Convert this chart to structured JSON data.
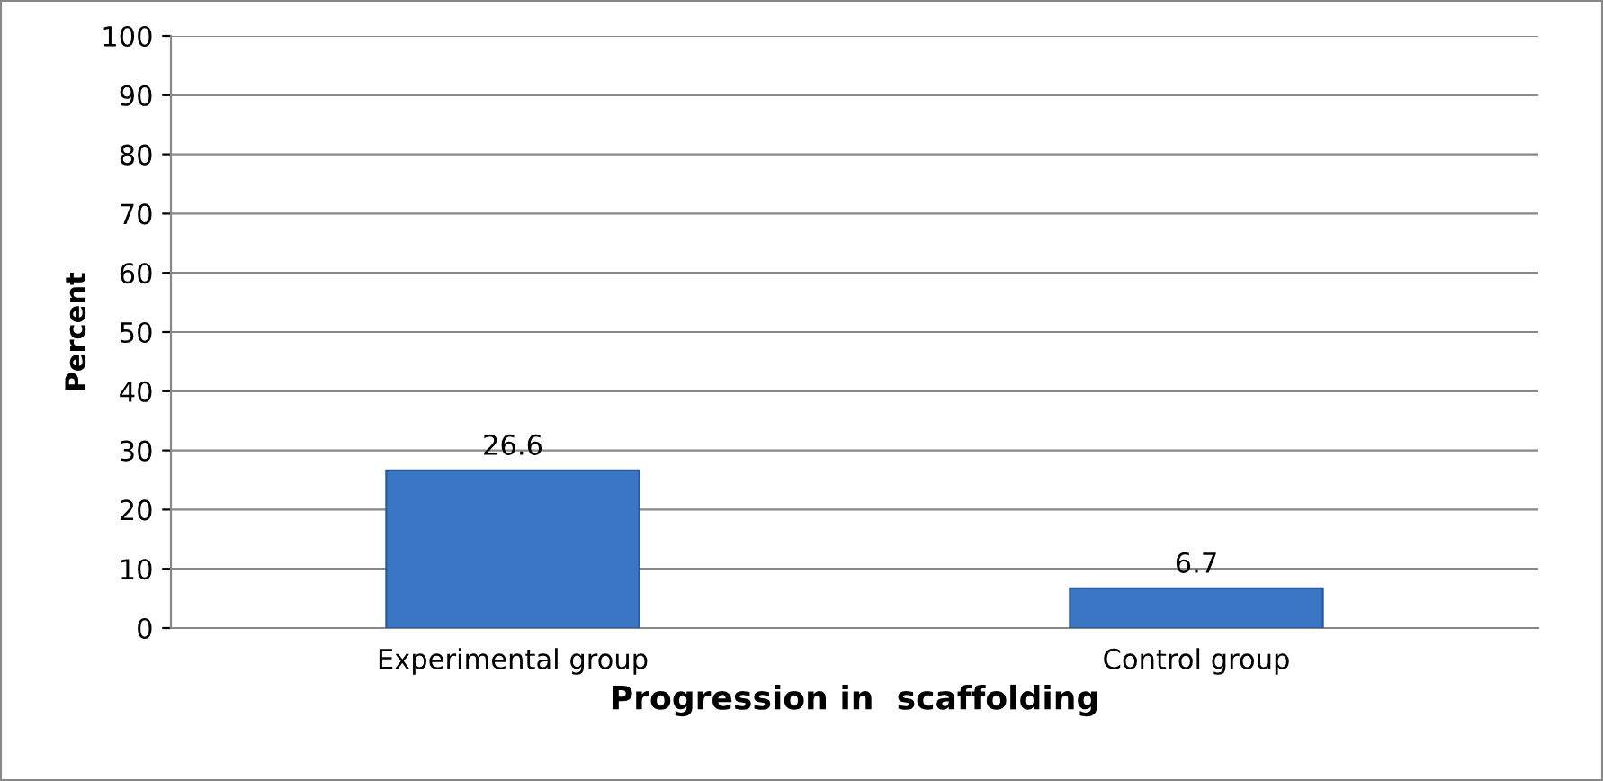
{
  "chart_data": {
    "type": "bar",
    "xlabel": "Progression in  scaffolding",
    "ylabel": "Percent",
    "categories": [
      "Experimental group",
      "Control group"
    ],
    "values": [
      26.6,
      6.7
    ],
    "color": "#3a76c4",
    "ylim": [
      0,
      100
    ],
    "yticks": [
      0,
      10,
      20,
      30,
      40,
      50,
      60,
      70,
      80,
      90,
      100
    ],
    "grid": "y",
    "data_labels": true
  }
}
